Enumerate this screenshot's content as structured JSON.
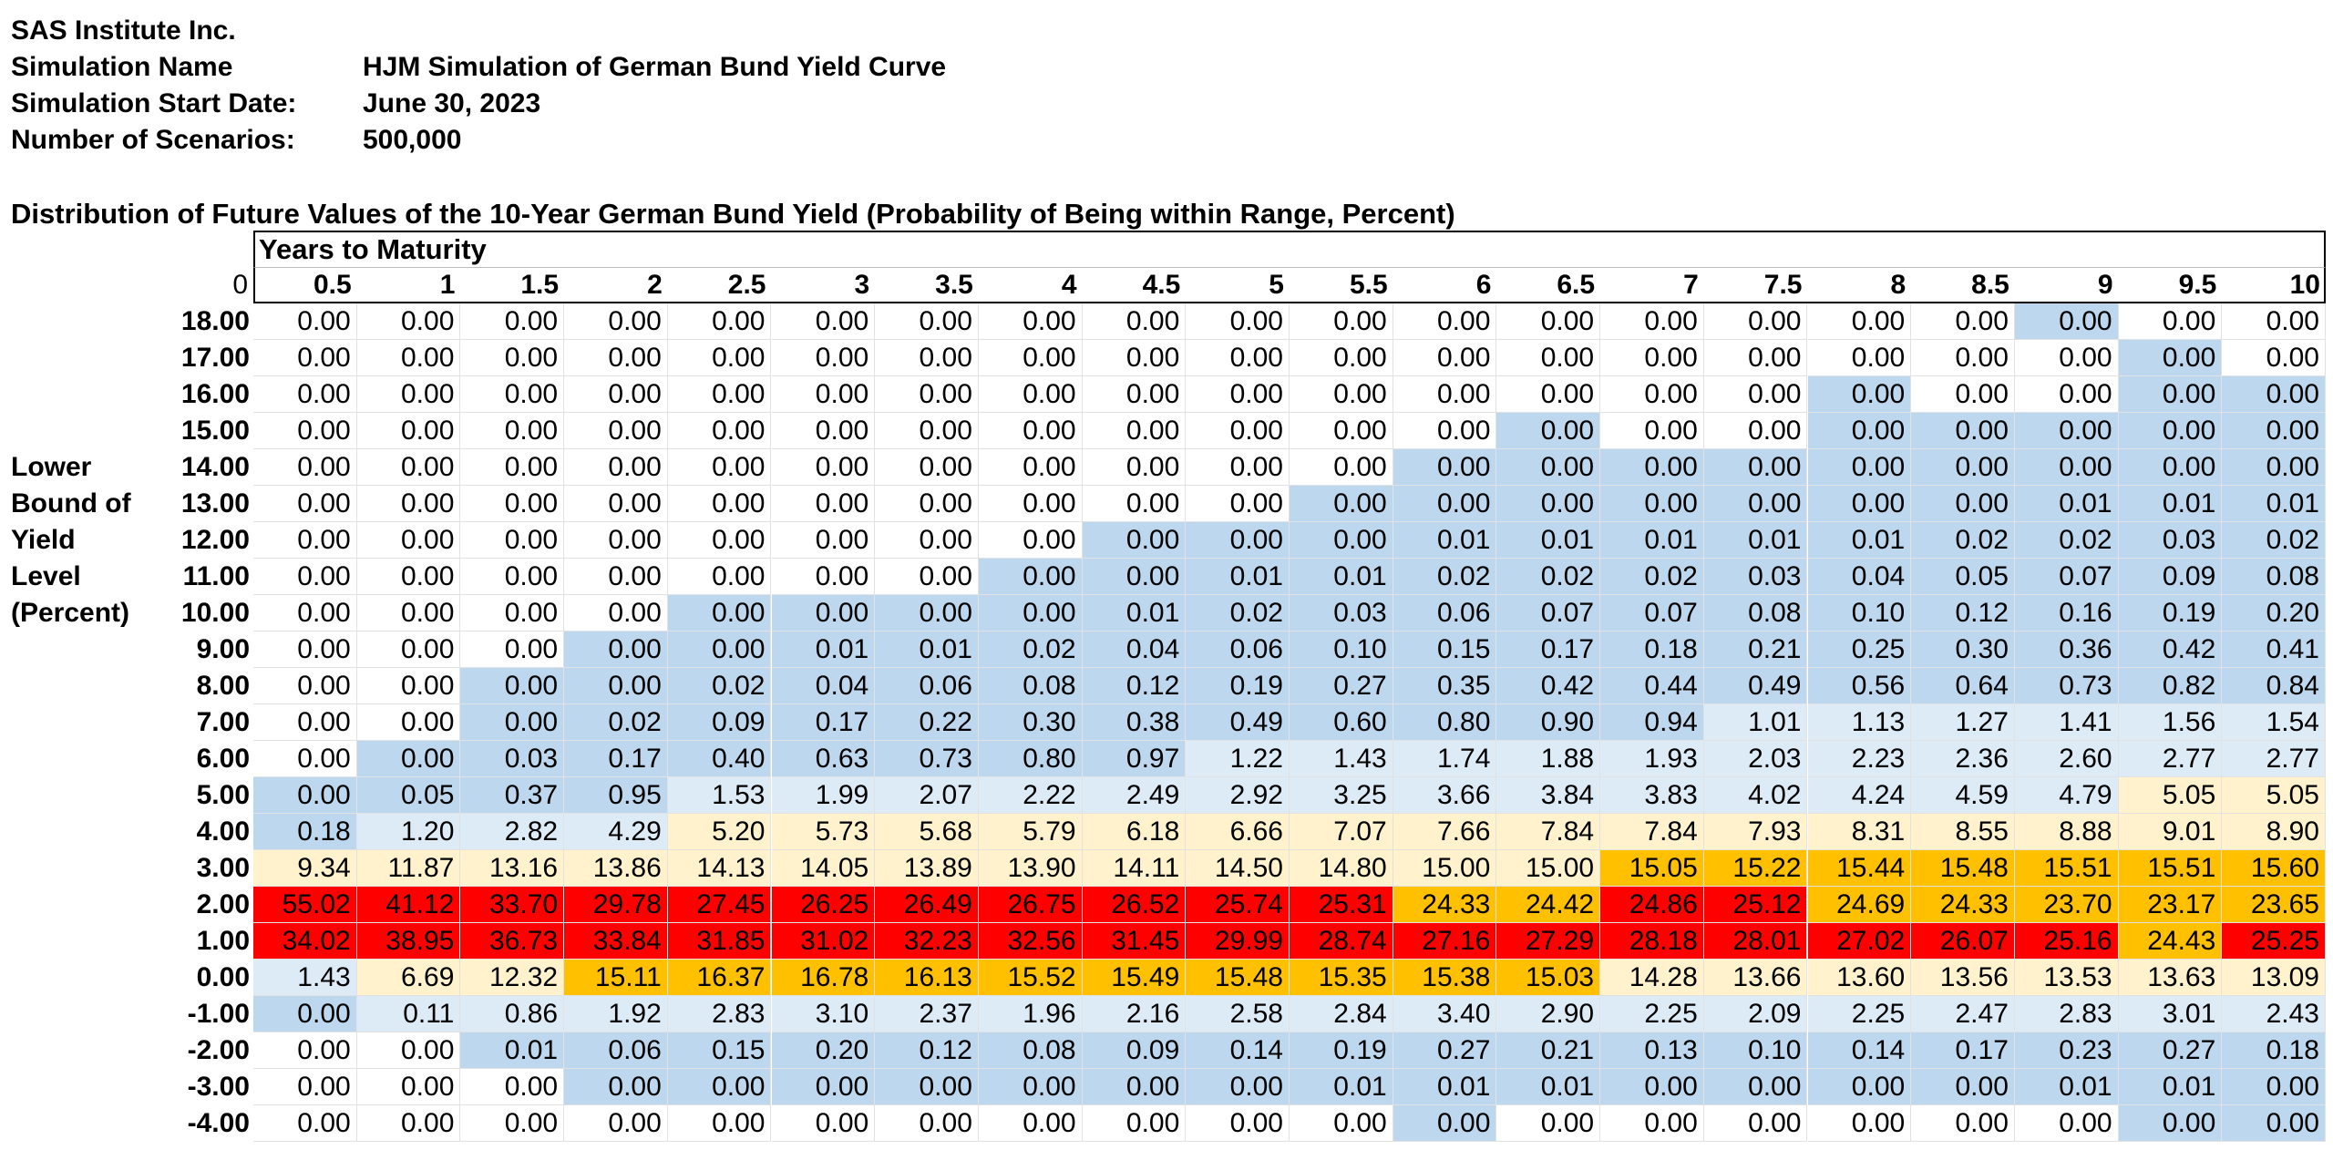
{
  "header": {
    "company": "SAS Institute Inc.",
    "rows": [
      {
        "label": "Simulation Name",
        "value": "HJM Simulation of German Bund Yield Curve"
      },
      {
        "label": "Simulation Start Date:",
        "value": "June 30, 2023"
      },
      {
        "label": "Number of Scenarios:",
        "value": "500,000"
      }
    ]
  },
  "table": {
    "title": "Distribution of Future Values of the 10-Year German Bund Yield (Probability of Being within Range, Percent)",
    "column_group_label": "Years to Maturity",
    "corner_value": "0",
    "row_axis_label": [
      "Lower",
      "Bound of",
      "Yield",
      "Level",
      "(Percent)"
    ],
    "columns": [
      "0.5",
      "1",
      "1.5",
      "2",
      "2.5",
      "3",
      "3.5",
      "4",
      "4.5",
      "5",
      "5.5",
      "6",
      "6.5",
      "7",
      "7.5",
      "8",
      "8.5",
      "9",
      "9.5",
      "10"
    ],
    "color_scale": {
      "white": "#ffffff",
      "blue": "#bdd7ee",
      "lightblue": "#ddebf7",
      "cream": "#fff2cc",
      "amber": "#ffc000",
      "red": "#ff0000"
    },
    "rows": [
      {
        "label": "18.00",
        "values": [
          "0.00",
          "0.00",
          "0.00",
          "0.00",
          "0.00",
          "0.00",
          "0.00",
          "0.00",
          "0.00",
          "0.00",
          "0.00",
          "0.00",
          "0.00",
          "0.00",
          "0.00",
          "0.00",
          "0.00",
          "0.00",
          "0.00",
          "0.00"
        ],
        "colors": "WWWWWWWWWWWWWWWWWBWW"
      },
      {
        "label": "17.00",
        "values": [
          "0.00",
          "0.00",
          "0.00",
          "0.00",
          "0.00",
          "0.00",
          "0.00",
          "0.00",
          "0.00",
          "0.00",
          "0.00",
          "0.00",
          "0.00",
          "0.00",
          "0.00",
          "0.00",
          "0.00",
          "0.00",
          "0.00",
          "0.00"
        ],
        "colors": "WWWWWWWWWWWWWWWWWWBW"
      },
      {
        "label": "16.00",
        "values": [
          "0.00",
          "0.00",
          "0.00",
          "0.00",
          "0.00",
          "0.00",
          "0.00",
          "0.00",
          "0.00",
          "0.00",
          "0.00",
          "0.00",
          "0.00",
          "0.00",
          "0.00",
          "0.00",
          "0.00",
          "0.00",
          "0.00",
          "0.00"
        ],
        "colors": "WWWWWWWWWWWWWWWBWWBB"
      },
      {
        "label": "15.00",
        "values": [
          "0.00",
          "0.00",
          "0.00",
          "0.00",
          "0.00",
          "0.00",
          "0.00",
          "0.00",
          "0.00",
          "0.00",
          "0.00",
          "0.00",
          "0.00",
          "0.00",
          "0.00",
          "0.00",
          "0.00",
          "0.00",
          "0.00",
          "0.00"
        ],
        "colors": "WWWWWWWWWWWWBWWBBBBB"
      },
      {
        "label": "14.00",
        "values": [
          "0.00",
          "0.00",
          "0.00",
          "0.00",
          "0.00",
          "0.00",
          "0.00",
          "0.00",
          "0.00",
          "0.00",
          "0.00",
          "0.00",
          "0.00",
          "0.00",
          "0.00",
          "0.00",
          "0.00",
          "0.00",
          "0.00",
          "0.00"
        ],
        "colors": "WWWWWWWWWWWBBBBBBBBB"
      },
      {
        "label": "13.00",
        "values": [
          "0.00",
          "0.00",
          "0.00",
          "0.00",
          "0.00",
          "0.00",
          "0.00",
          "0.00",
          "0.00",
          "0.00",
          "0.00",
          "0.00",
          "0.00",
          "0.00",
          "0.00",
          "0.00",
          "0.00",
          "0.01",
          "0.01",
          "0.01"
        ],
        "colors": "WWWWWWWWWWBBBBBBBBBB"
      },
      {
        "label": "12.00",
        "values": [
          "0.00",
          "0.00",
          "0.00",
          "0.00",
          "0.00",
          "0.00",
          "0.00",
          "0.00",
          "0.00",
          "0.00",
          "0.00",
          "0.01",
          "0.01",
          "0.01",
          "0.01",
          "0.01",
          "0.02",
          "0.02",
          "0.03",
          "0.02"
        ],
        "colors": "WWWWWWWWBBBBBBBBBBBB"
      },
      {
        "label": "11.00",
        "values": [
          "0.00",
          "0.00",
          "0.00",
          "0.00",
          "0.00",
          "0.00",
          "0.00",
          "0.00",
          "0.00",
          "0.01",
          "0.01",
          "0.02",
          "0.02",
          "0.02",
          "0.03",
          "0.04",
          "0.05",
          "0.07",
          "0.09",
          "0.08"
        ],
        "colors": "WWWWWWWBBBBBBBBBBBBB"
      },
      {
        "label": "10.00",
        "values": [
          "0.00",
          "0.00",
          "0.00",
          "0.00",
          "0.00",
          "0.00",
          "0.00",
          "0.00",
          "0.01",
          "0.02",
          "0.03",
          "0.06",
          "0.07",
          "0.07",
          "0.08",
          "0.10",
          "0.12",
          "0.16",
          "0.19",
          "0.20"
        ],
        "colors": "WWWWBBBBBBBBBBBBBBBB"
      },
      {
        "label": "9.00",
        "values": [
          "0.00",
          "0.00",
          "0.00",
          "0.00",
          "0.00",
          "0.01",
          "0.01",
          "0.02",
          "0.04",
          "0.06",
          "0.10",
          "0.15",
          "0.17",
          "0.18",
          "0.21",
          "0.25",
          "0.30",
          "0.36",
          "0.42",
          "0.41"
        ],
        "colors": "WWWBBBBBBBBBBBBBBBBB"
      },
      {
        "label": "8.00",
        "values": [
          "0.00",
          "0.00",
          "0.00",
          "0.00",
          "0.02",
          "0.04",
          "0.06",
          "0.08",
          "0.12",
          "0.19",
          "0.27",
          "0.35",
          "0.42",
          "0.44",
          "0.49",
          "0.56",
          "0.64",
          "0.73",
          "0.82",
          "0.84"
        ],
        "colors": "WWBBBBBBBBBBBBBBBBBB"
      },
      {
        "label": "7.00",
        "values": [
          "0.00",
          "0.00",
          "0.00",
          "0.02",
          "0.09",
          "0.17",
          "0.22",
          "0.30",
          "0.38",
          "0.49",
          "0.60",
          "0.80",
          "0.90",
          "0.94",
          "1.01",
          "1.13",
          "1.27",
          "1.41",
          "1.56",
          "1.54"
        ],
        "colors": "WWBBBBBBBBBBBBLLLLLL"
      },
      {
        "label": "6.00",
        "values": [
          "0.00",
          "0.00",
          "0.03",
          "0.17",
          "0.40",
          "0.63",
          "0.73",
          "0.80",
          "0.97",
          "1.22",
          "1.43",
          "1.74",
          "1.88",
          "1.93",
          "2.03",
          "2.23",
          "2.36",
          "2.60",
          "2.77",
          "2.77"
        ],
        "colors": "WBBBBBBBBLLLLLLLLLLL"
      },
      {
        "label": "5.00",
        "values": [
          "0.00",
          "0.05",
          "0.37",
          "0.95",
          "1.53",
          "1.99",
          "2.07",
          "2.22",
          "2.49",
          "2.92",
          "3.25",
          "3.66",
          "3.84",
          "3.83",
          "4.02",
          "4.24",
          "4.59",
          "4.79",
          "5.05",
          "5.05"
        ],
        "colors": "BBBBLLLLLLLLLLLLLLCC"
      },
      {
        "label": "4.00",
        "values": [
          "0.18",
          "1.20",
          "2.82",
          "4.29",
          "5.20",
          "5.73",
          "5.68",
          "5.79",
          "6.18",
          "6.66",
          "7.07",
          "7.66",
          "7.84",
          "7.84",
          "7.93",
          "8.31",
          "8.55",
          "8.88",
          "9.01",
          "8.90"
        ],
        "colors": "BLLLCCCCCCCCCCCCCCCC"
      },
      {
        "label": "3.00",
        "values": [
          "9.34",
          "11.87",
          "13.16",
          "13.86",
          "14.13",
          "14.05",
          "13.89",
          "13.90",
          "14.11",
          "14.50",
          "14.80",
          "15.00",
          "15.00",
          "15.05",
          "15.22",
          "15.44",
          "15.48",
          "15.51",
          "15.51",
          "15.60"
        ],
        "colors": "CCCCCCCCCCCCCAAAAAAA"
      },
      {
        "label": "2.00",
        "values": [
          "55.02",
          "41.12",
          "33.70",
          "29.78",
          "27.45",
          "26.25",
          "26.49",
          "26.75",
          "26.52",
          "25.74",
          "25.31",
          "24.33",
          "24.42",
          "24.86",
          "25.12",
          "24.69",
          "24.33",
          "23.70",
          "23.17",
          "23.65"
        ],
        "colors": "RRRRRRRRRRRAARRAAAAA"
      },
      {
        "label": "1.00",
        "values": [
          "34.02",
          "38.95",
          "36.73",
          "33.84",
          "31.85",
          "31.02",
          "32.23",
          "32.56",
          "31.45",
          "29.99",
          "28.74",
          "27.16",
          "27.29",
          "28.18",
          "28.01",
          "27.02",
          "26.07",
          "25.16",
          "24.43",
          "25.25"
        ],
        "colors": "RRRRRRRRRRRRRRRRRRAR"
      },
      {
        "label": "0.00",
        "values": [
          "1.43",
          "6.69",
          "12.32",
          "15.11",
          "16.37",
          "16.78",
          "16.13",
          "15.52",
          "15.49",
          "15.48",
          "15.35",
          "15.38",
          "15.03",
          "14.28",
          "13.66",
          "13.60",
          "13.56",
          "13.53",
          "13.63",
          "13.09"
        ],
        "colors": "LCCAAAAAAAAAACCCCCCC"
      },
      {
        "label": "-1.00",
        "values": [
          "0.00",
          "0.11",
          "0.86",
          "1.92",
          "2.83",
          "3.10",
          "2.37",
          "1.96",
          "2.16",
          "2.58",
          "2.84",
          "3.40",
          "2.90",
          "2.25",
          "2.09",
          "2.25",
          "2.47",
          "2.83",
          "3.01",
          "2.43"
        ],
        "colors": "BLLLLLLLLLLLLLLLLLLL"
      },
      {
        "label": "-2.00",
        "values": [
          "0.00",
          "0.00",
          "0.01",
          "0.06",
          "0.15",
          "0.20",
          "0.12",
          "0.08",
          "0.09",
          "0.14",
          "0.19",
          "0.27",
          "0.21",
          "0.13",
          "0.10",
          "0.14",
          "0.17",
          "0.23",
          "0.27",
          "0.18"
        ],
        "colors": "WWBBBBBBBBBBBBBBBBBB"
      },
      {
        "label": "-3.00",
        "values": [
          "0.00",
          "0.00",
          "0.00",
          "0.00",
          "0.00",
          "0.00",
          "0.00",
          "0.00",
          "0.00",
          "0.00",
          "0.01",
          "0.01",
          "0.01",
          "0.00",
          "0.00",
          "0.00",
          "0.00",
          "0.01",
          "0.01",
          "0.00"
        ],
        "colors": "WWWBBBBBBBBBBBBBBBBB"
      },
      {
        "label": "-4.00",
        "values": [
          "0.00",
          "0.00",
          "0.00",
          "0.00",
          "0.00",
          "0.00",
          "0.00",
          "0.00",
          "0.00",
          "0.00",
          "0.00",
          "0.00",
          "0.00",
          "0.00",
          "0.00",
          "0.00",
          "0.00",
          "0.00",
          "0.00",
          "0.00"
        ],
        "colors": "WWWWWWWWWWWBWWWWWWBB"
      }
    ]
  }
}
